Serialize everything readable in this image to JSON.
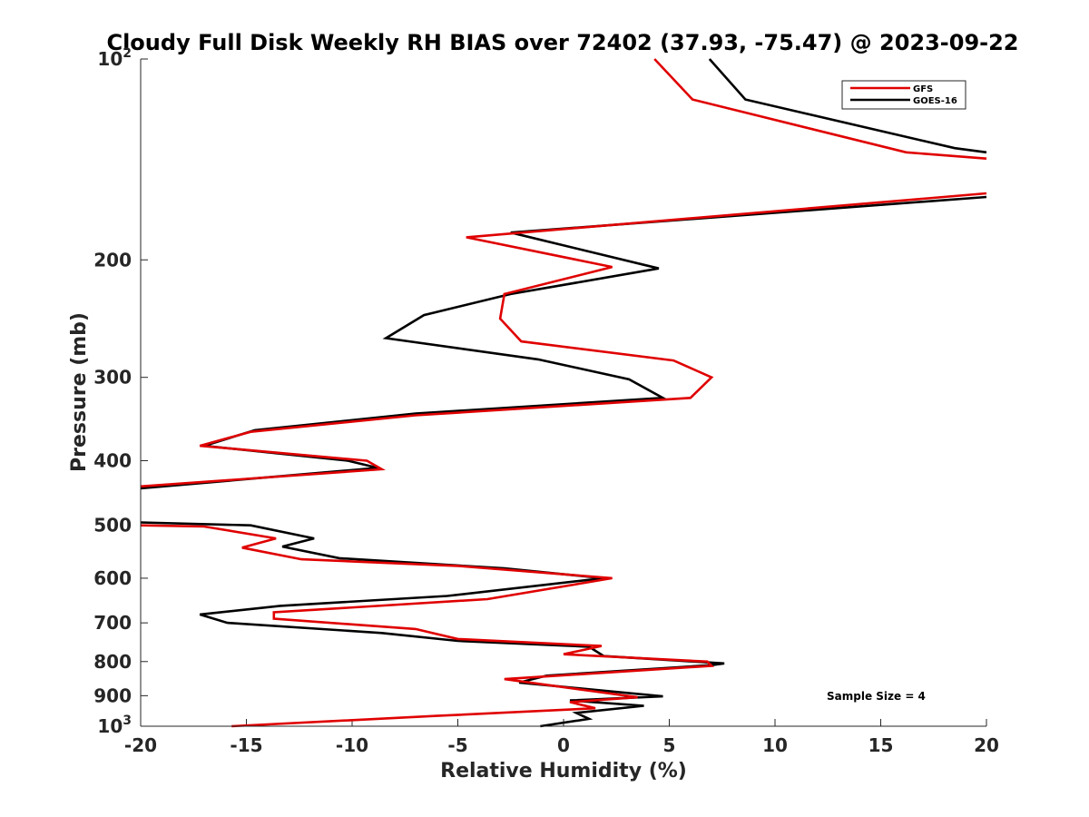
{
  "chart_data": {
    "type": "line",
    "title": "Cloudy Full Disk Weekly RH BIAS over 72402 (37.93, -75.47) @ 2023-09-22",
    "xlabel": "Relative Humidity (%)",
    "ylabel": "Pressure (mb)",
    "xlim": [
      -20,
      20
    ],
    "ylim": [
      1000,
      100
    ],
    "yscale": "log",
    "y_reversed": true,
    "grid": false,
    "legend_position": "top-right",
    "x_ticks": [
      -20,
      -15,
      -10,
      -5,
      0,
      5,
      10,
      15,
      20
    ],
    "x_tick_labels": [
      "-20",
      "-15",
      "-10",
      "-5",
      "0",
      "5",
      "10",
      "15",
      "20"
    ],
    "y_ticks": [
      100,
      200,
      300,
      400,
      500,
      600,
      700,
      800,
      900,
      1000
    ],
    "y_tick_labels": [
      {
        "base": "10",
        "exp": "2"
      },
      {
        "base": "200",
        "exp": ""
      },
      {
        "base": "300",
        "exp": ""
      },
      {
        "base": "400",
        "exp": ""
      },
      {
        "base": "500",
        "exp": ""
      },
      {
        "base": "600",
        "exp": ""
      },
      {
        "base": "700",
        "exp": ""
      },
      {
        "base": "800",
        "exp": ""
      },
      {
        "base": "900",
        "exp": ""
      },
      {
        "base": "10",
        "exp": "3"
      }
    ],
    "annotation": "Sample Size = 4",
    "series": [
      {
        "name": "GFS",
        "color": "#e00000",
        "points": [
          {
            "x": 4.3,
            "y": 100
          },
          {
            "x": 6.1,
            "y": 115
          },
          {
            "x": 16.2,
            "y": 138
          },
          {
            "x": 20,
            "y": 141
          },
          {
            "x": null,
            "y": null
          },
          {
            "x": 20,
            "y": 159
          },
          {
            "x": -4.6,
            "y": 185
          },
          {
            "x": 2.3,
            "y": 205
          },
          {
            "x": -2.8,
            "y": 225
          },
          {
            "x": -3.0,
            "y": 245
          },
          {
            "x": -2.0,
            "y": 265
          },
          {
            "x": 5.2,
            "y": 283
          },
          {
            "x": 7.0,
            "y": 300
          },
          {
            "x": 6.0,
            "y": 322
          },
          {
            "x": -7.0,
            "y": 342
          },
          {
            "x": -14.8,
            "y": 362
          },
          {
            "x": -17.2,
            "y": 380
          },
          {
            "x": -9.3,
            "y": 400
          },
          {
            "x": -8.6,
            "y": 412
          },
          {
            "x": -20,
            "y": 437
          },
          {
            "x": null,
            "y": null
          },
          {
            "x": -20,
            "y": 500
          },
          {
            "x": -17.0,
            "y": 502
          },
          {
            "x": -13.6,
            "y": 523
          },
          {
            "x": -15.2,
            "y": 540
          },
          {
            "x": -12.4,
            "y": 562
          },
          {
            "x": -5.0,
            "y": 575
          },
          {
            "x": 2.3,
            "y": 600
          },
          {
            "x": -3.6,
            "y": 645
          },
          {
            "x": -13.7,
            "y": 675
          },
          {
            "x": -13.7,
            "y": 690
          },
          {
            "x": -7.0,
            "y": 715
          },
          {
            "x": -5.0,
            "y": 740
          },
          {
            "x": 1.8,
            "y": 758
          },
          {
            "x": 0.0,
            "y": 780
          },
          {
            "x": 6.8,
            "y": 800
          },
          {
            "x": 7.0,
            "y": 812
          },
          {
            "x": -2.8,
            "y": 850
          },
          {
            "x": 3.5,
            "y": 905
          },
          {
            "x": 0.3,
            "y": 920
          },
          {
            "x": 1.5,
            "y": 940
          },
          {
            "x": -6.0,
            "y": 965
          },
          {
            "x": -15.7,
            "y": 1000
          }
        ]
      },
      {
        "name": "GOES-16",
        "color": "#000000",
        "points": [
          {
            "x": 6.9,
            "y": 100
          },
          {
            "x": 8.6,
            "y": 115
          },
          {
            "x": 18.5,
            "y": 136
          },
          {
            "x": 20,
            "y": 138
          },
          {
            "x": null,
            "y": null
          },
          {
            "x": 20,
            "y": 161
          },
          {
            "x": -2.5,
            "y": 182
          },
          {
            "x": 4.5,
            "y": 206
          },
          {
            "x": -2.5,
            "y": 225
          },
          {
            "x": -6.6,
            "y": 242
          },
          {
            "x": -8.4,
            "y": 262
          },
          {
            "x": -1.2,
            "y": 282
          },
          {
            "x": 3.1,
            "y": 302
          },
          {
            "x": 4.7,
            "y": 322
          },
          {
            "x": -7.0,
            "y": 340
          },
          {
            "x": -14.6,
            "y": 360
          },
          {
            "x": -17.0,
            "y": 380
          },
          {
            "x": -10.2,
            "y": 400
          },
          {
            "x": -8.8,
            "y": 410
          },
          {
            "x": -20,
            "y": 440
          },
          {
            "x": null,
            "y": null
          },
          {
            "x": -20,
            "y": 495
          },
          {
            "x": -14.8,
            "y": 500
          },
          {
            "x": -11.8,
            "y": 523
          },
          {
            "x": -13.3,
            "y": 538
          },
          {
            "x": -10.6,
            "y": 560
          },
          {
            "x": -2.8,
            "y": 580
          },
          {
            "x": 1.9,
            "y": 600
          },
          {
            "x": -5.5,
            "y": 638
          },
          {
            "x": -13.4,
            "y": 660
          },
          {
            "x": -17.2,
            "y": 680
          },
          {
            "x": -15.9,
            "y": 700
          },
          {
            "x": -8.6,
            "y": 725
          },
          {
            "x": -5.0,
            "y": 745
          },
          {
            "x": 1.2,
            "y": 760
          },
          {
            "x": 1.9,
            "y": 785
          },
          {
            "x": 7.6,
            "y": 805
          },
          {
            "x": 7.0,
            "y": 810
          },
          {
            "x": -0.8,
            "y": 840
          },
          {
            "x": -2.1,
            "y": 860
          },
          {
            "x": 4.7,
            "y": 902
          },
          {
            "x": 0.3,
            "y": 915
          },
          {
            "x": 3.8,
            "y": 932
          },
          {
            "x": 0.6,
            "y": 955
          },
          {
            "x": 1.2,
            "y": 975
          },
          {
            "x": -1.1,
            "y": 1000
          }
        ]
      }
    ]
  }
}
